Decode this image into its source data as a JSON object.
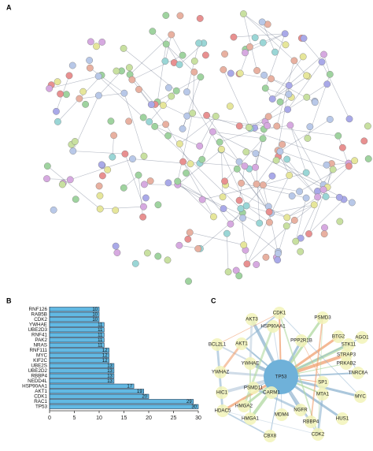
{
  "panel_labels": [
    "A",
    "B",
    "C"
  ],
  "chart_data": {
    "type": "barh",
    "categories": [
      "RNF126",
      "RAB5B",
      "CDK2",
      "YWHAE",
      "UBE2D3",
      "RNF41",
      "PAK2",
      "NRAS",
      "RNF111",
      "MYC",
      "KIF2C",
      "UBE2S",
      "UBE2D2",
      "RBBP4",
      "NEDD4L",
      "HSP90AA1",
      "AKT1",
      "CDK1",
      "RAC1",
      "TP53"
    ],
    "values": [
      10,
      10,
      10,
      11,
      11,
      11,
      11,
      11,
      12,
      12,
      12,
      13,
      13,
      13,
      13,
      17,
      19,
      20,
      29,
      30
    ],
    "color": "#62b9e3",
    "xlim": [
      0,
      30
    ],
    "xticks": [
      0,
      5,
      10,
      15,
      20,
      25,
      30
    ]
  },
  "network": {
    "nodes": [
      "TP53",
      "CDK1",
      "PSMD3",
      "AKT3",
      "HSP90AA1",
      "AKT1",
      "BTG2",
      "STK11",
      "AGO1",
      "BCL2L1",
      "PPP2R1B",
      "STRAP3",
      "PRKAB2",
      "TNRC6A",
      "YWHAZ",
      "YWHAE",
      "SP1",
      "MTA1",
      "MYC",
      "HIC1",
      "PSMD11",
      "CARM1",
      "HMGA2",
      "NGFR",
      "MDM4",
      "RBBP4",
      "HDAC5",
      "HMGA1",
      "CBX8",
      "CDK2",
      "HUS1"
    ]
  }
}
